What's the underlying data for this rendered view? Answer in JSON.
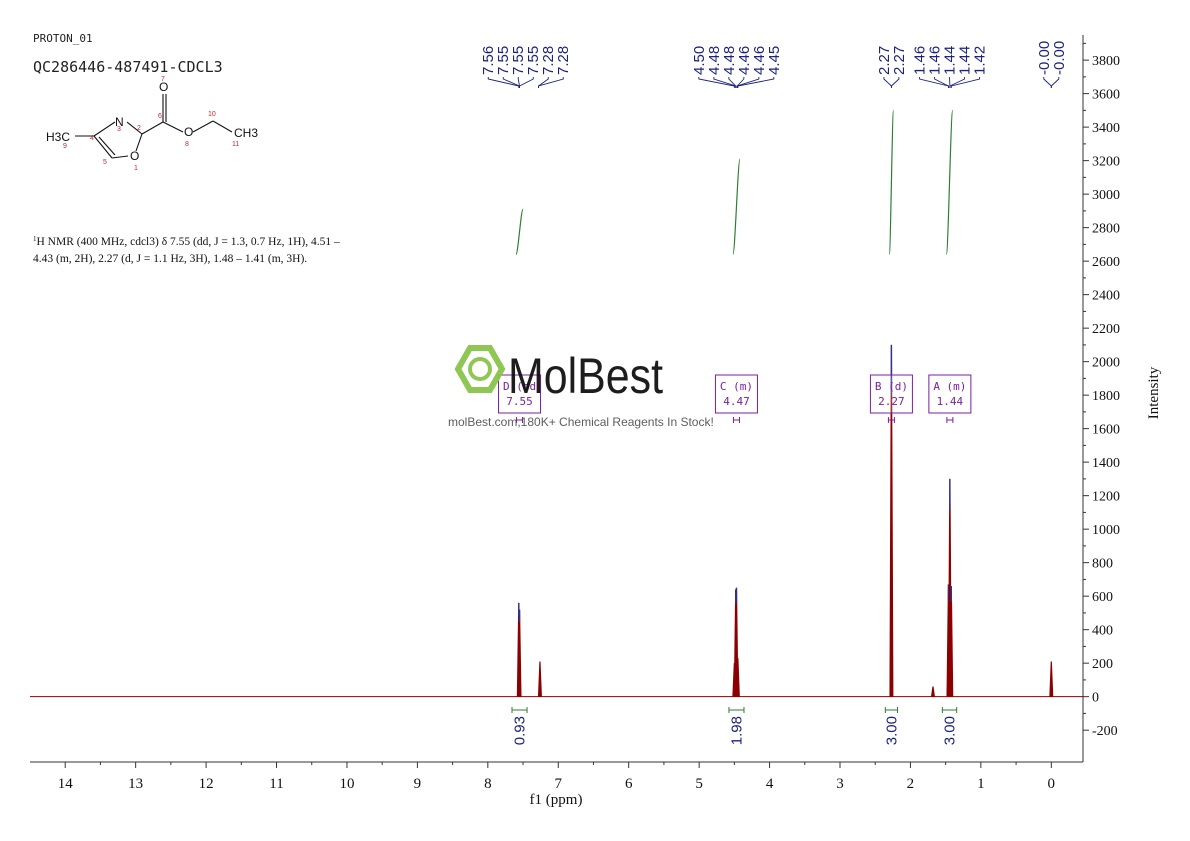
{
  "header": {
    "experiment": "PROTON_01",
    "sample": "QC286446-487491-CDCL3"
  },
  "description": {
    "sup": "1",
    "line1": "H NMR (400 MHz, cdcl3) δ 7.55 (dd, J = 1.3, 0.7 Hz, 1H), 4.51 –",
    "line2": "4.43 (m, 2H), 2.27 (d, J = 1.1 Hz, 3H), 1.48 – 1.41 (m, 3H)."
  },
  "structure": {
    "atoms": {
      "h3c": "H3C",
      "ch3": "CH3",
      "n": "N",
      "o_ring": "O",
      "o_carbonyl": "O",
      "o_ester": "O"
    },
    "numbers": [
      "1",
      "2",
      "3",
      "4",
      "5",
      "6",
      "7",
      "8",
      "9",
      "10",
      "11"
    ]
  },
  "watermark": {
    "brand": "MolBest",
    "tagline": "molBest.com,180K+ Chemical Reagents In Stock!"
  },
  "colors": {
    "spectrum": "#8b0000",
    "peak_labels": "#1a237e",
    "integral_curve": "#2e7d32",
    "integral_values": "#1a237e",
    "multiplet_box": "#7b1fa2",
    "watermark": "#8bc34a"
  },
  "chart_data": {
    "type": "line",
    "xlabel": "f1 (ppm)",
    "ylabel": "Intensity",
    "xlim": [
      14.5,
      -0.45
    ],
    "ylim": [
      -390,
      3950
    ],
    "x_reversed": true,
    "x_ticks": [
      14,
      13,
      12,
      11,
      10,
      9,
      8,
      7,
      6,
      5,
      4,
      3,
      2,
      1,
      0
    ],
    "y_ticks": [
      -200,
      0,
      200,
      400,
      600,
      800,
      1000,
      1200,
      1400,
      1600,
      1800,
      2000,
      2200,
      2400,
      2600,
      2800,
      3000,
      3200,
      3400,
      3600,
      3800
    ],
    "peaks": [
      {
        "ppm": 7.56,
        "intensity": 560
      },
      {
        "ppm": 7.55,
        "intensity": 520
      },
      {
        "ppm": 7.26,
        "intensity": 210
      },
      {
        "ppm": 4.5,
        "intensity": 200
      },
      {
        "ppm": 4.48,
        "intensity": 640
      },
      {
        "ppm": 4.47,
        "intensity": 650
      },
      {
        "ppm": 4.45,
        "intensity": 230
      },
      {
        "ppm": 2.27,
        "intensity": 2100
      },
      {
        "ppm": 1.68,
        "intensity": 60
      },
      {
        "ppm": 1.46,
        "intensity": 670
      },
      {
        "ppm": 1.44,
        "intensity": 1300
      },
      {
        "ppm": 1.42,
        "intensity": 660
      },
      {
        "ppm": 0.0,
        "intensity": 210
      }
    ],
    "peak_label_groups": [
      {
        "labels": [
          "7.56",
          "7.55",
          "7.55",
          "7.55",
          "7.28",
          "7.28"
        ],
        "ppm": [
          7.56,
          7.55,
          7.55,
          7.55,
          7.28,
          7.28
        ]
      },
      {
        "labels": [
          "4.50",
          "4.48",
          "4.48",
          "4.46",
          "4.46",
          "4.45"
        ],
        "ppm": [
          4.5,
          4.48,
          4.48,
          4.46,
          4.46,
          4.45
        ]
      },
      {
        "labels": [
          "2.27",
          "2.27"
        ],
        "ppm": [
          2.27,
          2.27
        ]
      },
      {
        "labels": [
          "1.46",
          "1.46",
          "1.44",
          "1.44",
          "1.42"
        ],
        "ppm": [
          1.46,
          1.46,
          1.44,
          1.44,
          1.42
        ]
      },
      {
        "labels": [
          "-0.00",
          "-0.00"
        ],
        "ppm": [
          0.0,
          0.0
        ]
      }
    ],
    "multiplets": [
      {
        "letter": "D",
        "type": "(dd",
        "shift": "7.55",
        "ppm": 7.55
      },
      {
        "letter": "C",
        "type": "(m)",
        "shift": "4.47",
        "ppm": 4.47
      },
      {
        "letter": "B",
        "type": "(d)",
        "shift": "2.27",
        "ppm": 2.27
      },
      {
        "letter": "A",
        "type": "(m)",
        "shift": "1.44",
        "ppm": 1.44
      }
    ],
    "integrals": [
      {
        "from": 7.6,
        "to": 7.5,
        "value": "0.93",
        "curve_start": 2640,
        "curve_end": 2910
      },
      {
        "from": 4.52,
        "to": 4.42,
        "value": "1.98",
        "curve_start": 2640,
        "curve_end": 3210
      },
      {
        "from": 2.3,
        "to": 2.24,
        "value": "3.00",
        "curve_start": 2640,
        "curve_end": 3500
      },
      {
        "from": 1.49,
        "to": 1.4,
        "value": "3.00",
        "curve_start": 2640,
        "curve_end": 3500
      }
    ]
  }
}
